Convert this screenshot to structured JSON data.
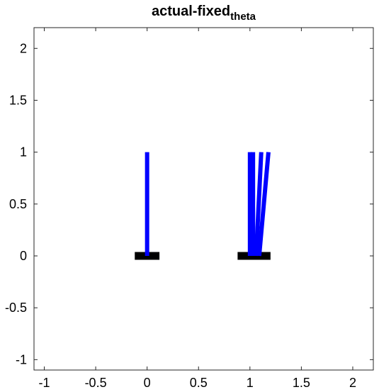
{
  "chart_data": {
    "type": "line",
    "title": "actual-fixed",
    "title_subscript": "theta",
    "xlabel": "",
    "ylabel": "",
    "xlim": [
      -1.1,
      2.2
    ],
    "ylim": [
      -1.1,
      2.2
    ],
    "grid": false,
    "x_ticks": [
      "-1",
      "-0.5",
      "0",
      "0.5",
      "1",
      "1.5",
      "2"
    ],
    "y_ticks": [
      "-1",
      "-0.5",
      "0",
      "0.5",
      "1",
      "1.5",
      "2"
    ],
    "x_tick_values": [
      -1,
      -0.5,
      0,
      0.5,
      1,
      1.5,
      2
    ],
    "y_tick_values": [
      -1,
      -0.5,
      0,
      0.5,
      1,
      1.5,
      2
    ],
    "bases": [
      {
        "x": [
          -0.12,
          0.12
        ],
        "y": [
          0,
          0
        ],
        "color": "#000000"
      },
      {
        "x": [
          0.88,
          1.2
        ],
        "y": [
          0,
          0
        ],
        "color": "#000000"
      }
    ],
    "poles": [
      {
        "x": [
          0,
          0
        ],
        "y": [
          0,
          1
        ],
        "color": "#0000ff"
      },
      {
        "x": [
          1.0,
          1.0
        ],
        "y": [
          0,
          1
        ],
        "color": "#0000ff"
      },
      {
        "x": [
          1.03,
          1.03
        ],
        "y": [
          0,
          1
        ],
        "color": "#0000ff"
      },
      {
        "x": [
          1.06,
          1.11
        ],
        "y": [
          0,
          1
        ],
        "color": "#0000ff"
      },
      {
        "x": [
          1.09,
          1.18
        ],
        "y": [
          0,
          1
        ],
        "color": "#0000ff"
      }
    ]
  }
}
